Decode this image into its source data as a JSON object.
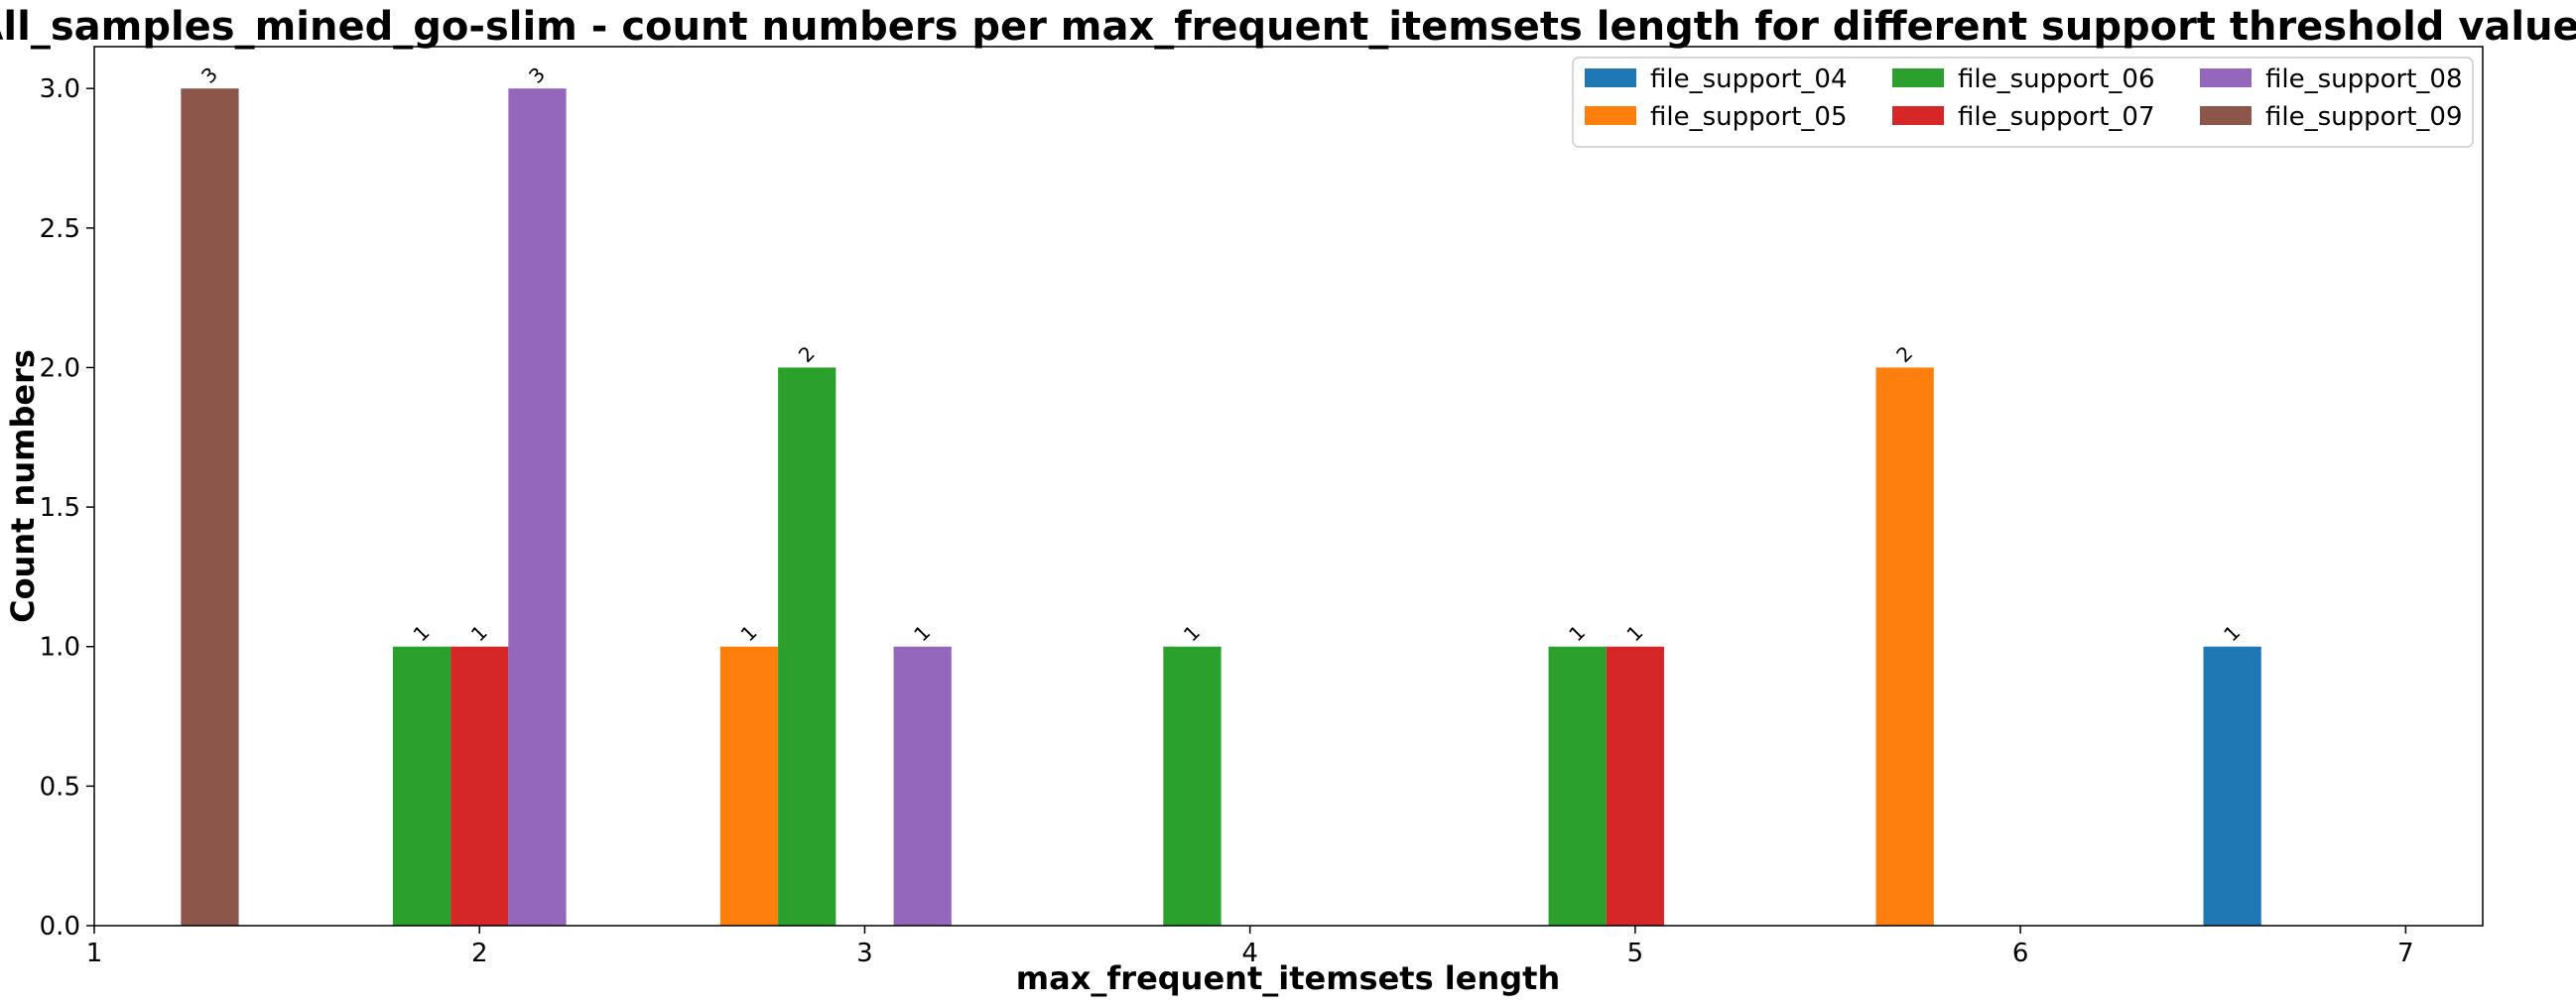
{
  "chart_data": {
    "type": "bar",
    "title": "All_samples_mined_go-slim - count numbers per max_frequent_itemsets length for different support threshold values",
    "xlabel": "max_frequent_itemsets length",
    "ylabel": "Count numbers",
    "xlim": [
      1,
      7.2
    ],
    "ylim": [
      0,
      3.15
    ],
    "xticks": [
      "1",
      "2",
      "3",
      "4",
      "5",
      "6",
      "7"
    ],
    "yticks": [
      "0.0",
      "0.5",
      "1.0",
      "1.5",
      "2.0",
      "2.5",
      "3.0"
    ],
    "bar_width": 0.15,
    "legend_position": "upper right",
    "series": [
      {
        "name": "file_support_04",
        "color": "#1f77b4",
        "offset": -0.45,
        "points": [
          {
            "x": 7,
            "y": 1
          }
        ]
      },
      {
        "name": "file_support_05",
        "color": "#ff7f0e",
        "offset": -0.3,
        "points": [
          {
            "x": 3,
            "y": 1
          },
          {
            "x": 6,
            "y": 2
          }
        ]
      },
      {
        "name": "file_support_06",
        "color": "#2ca02c",
        "offset": -0.15,
        "points": [
          {
            "x": 2,
            "y": 1
          },
          {
            "x": 3,
            "y": 2
          },
          {
            "x": 4,
            "y": 1
          },
          {
            "x": 5,
            "y": 1
          }
        ]
      },
      {
        "name": "file_support_07",
        "color": "#d62728",
        "offset": 0.0,
        "points": [
          {
            "x": 2,
            "y": 1
          },
          {
            "x": 5,
            "y": 1
          }
        ]
      },
      {
        "name": "file_support_08",
        "color": "#9467bd",
        "offset": 0.15,
        "points": [
          {
            "x": 2,
            "y": 3
          },
          {
            "x": 3,
            "y": 1
          }
        ]
      },
      {
        "name": "file_support_09",
        "color": "#8c564b",
        "offset": 0.3,
        "points": [
          {
            "x": 1,
            "y": 3
          }
        ]
      }
    ]
  }
}
